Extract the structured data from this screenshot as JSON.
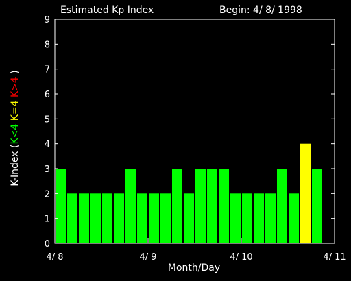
{
  "chart_data": {
    "type": "bar",
    "title": "Estimated Kp Index",
    "begin_label": "Begin: 4/ 8/ 1998",
    "xlabel": "Month/Day",
    "ylabel_parts": [
      {
        "text": "K-Index (",
        "color": "#ffffff"
      },
      {
        "text": "K<4",
        "color": "#00ff00"
      },
      {
        "text": " ",
        "color": "#ffffff"
      },
      {
        "text": "K=4",
        "color": "#ffff00"
      },
      {
        "text": " ",
        "color": "#ffffff"
      },
      {
        "text": "K>4",
        "color": "#ff0000"
      },
      {
        "text": " )",
        "color": "#ffffff"
      }
    ],
    "ylim": [
      0,
      9
    ],
    "yticks": [
      0,
      1,
      2,
      3,
      4,
      5,
      6,
      7,
      8,
      9
    ],
    "xlim_days": [
      0,
      3
    ],
    "xtick_labels": [
      "4/ 8",
      "4/ 9",
      "4/ 10",
      "4/ 11"
    ],
    "interval_hours": 3,
    "values": [
      3,
      2,
      2,
      2,
      2,
      2,
      3,
      2,
      2,
      2,
      3,
      2,
      3,
      3,
      3,
      2,
      2,
      2,
      2,
      3,
      2,
      4,
      3
    ],
    "colors": {
      "below": "#00ff00",
      "equal": "#ffff00",
      "above": "#ff0000"
    },
    "grid": false
  }
}
